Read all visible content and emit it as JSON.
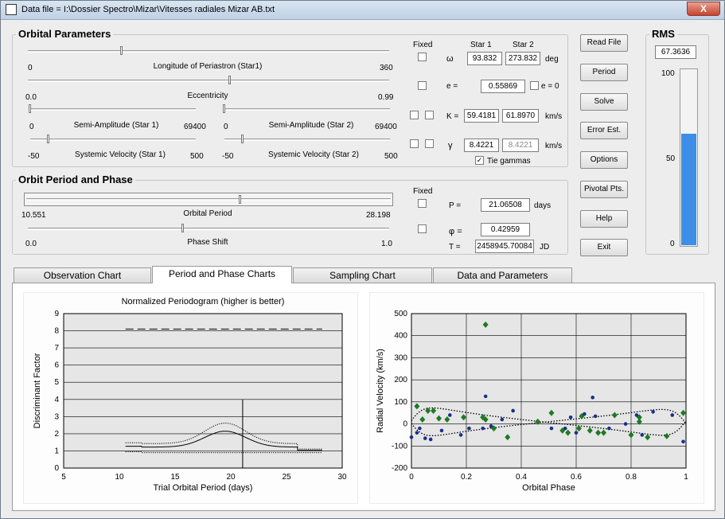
{
  "window": {
    "title": "Data file = I:\\Dossier Spectro\\Mizar\\Vitesses radiales Mizar AB.txt",
    "close_glyph": "X"
  },
  "orbital": {
    "title": "Orbital Parameters",
    "fixed_label": "Fixed",
    "star1_header": "Star 1",
    "star2_header": "Star 2",
    "sliders": {
      "periastron": {
        "label": "Longitude of Periastron (Star1)",
        "min": "0",
        "max": "360",
        "pos": 0.26
      },
      "eccentricity": {
        "label": "Eccentricity",
        "min": "0.0",
        "max": "0.99",
        "pos": 0.56
      },
      "semi1": {
        "label": "Semi-Amplitude (Star 1)",
        "min": "0",
        "max": "69400",
        "pos": 0.0
      },
      "semi2": {
        "label": "Semi-Amplitude (Star 2)",
        "min": "0",
        "max": "69400",
        "pos": 0.0
      },
      "sysvel1": {
        "label": "Systemic Velocity (Star 1)",
        "min": "-50",
        "max": "500",
        "pos": 0.11
      },
      "sysvel2": {
        "label": "Systemic Velocity (Star 2)",
        "min": "-50",
        "max": "500",
        "pos": 0.11
      }
    },
    "omega": {
      "symbol": "ω",
      "star1": "93.832",
      "star2": "273.832",
      "unit": "deg"
    },
    "e": {
      "symbol": "e =",
      "value": "0.55869",
      "zero_label": "e = 0"
    },
    "K": {
      "symbol": "K =",
      "star1": "59.4181",
      "star2": "61.8970",
      "unit": "km/s"
    },
    "gamma": {
      "symbol": "γ",
      "star1": "8.4221",
      "star2": "8.4221",
      "unit": "km/s"
    },
    "tie_gammas": {
      "label": "Tie gammas",
      "checked": true
    }
  },
  "period": {
    "title": "Orbit Period and Phase",
    "fixed_label": "Fixed",
    "orbital_period": {
      "label": "Orbital Period",
      "min": "10.551",
      "max": "28.198",
      "pos": 0.59
    },
    "phase_shift": {
      "label": "Phase Shift",
      "min": "0.0",
      "max": "1.0",
      "pos": 0.43
    },
    "P": {
      "symbol": "P =",
      "value": "21.06508",
      "unit": "days"
    },
    "phi": {
      "symbol": "φ =",
      "value": "0.42959"
    },
    "T": {
      "symbol": "T =",
      "value": "2458945.70084",
      "unit": "JD"
    }
  },
  "buttons": {
    "read_file": "Read File",
    "period": "Period",
    "solve": "Solve",
    "error": "Error Est.",
    "options": "Options",
    "pivotal": "Pivotal Pts.",
    "help": "Help",
    "exit": "Exit"
  },
  "rms": {
    "title": "RMS",
    "value": "67.3636",
    "ticks": [
      "100",
      "50",
      "0"
    ],
    "level": 0.63,
    "color": "#3d8ee6"
  },
  "tabs": [
    {
      "label": "Observation Chart",
      "active": false
    },
    {
      "label": "Period and Phase Charts",
      "active": true
    },
    {
      "label": "Sampling Chart",
      "active": false
    },
    {
      "label": "Data and Parameters",
      "active": false
    }
  ],
  "chart_data": [
    {
      "type": "scatter",
      "title": "Normalized Periodogram  (higher is better)",
      "xlabel": "Trial Orbital Period (days)",
      "ylabel": "Discriminant Factor",
      "xlim": [
        5,
        30
      ],
      "ylim": [
        0,
        9
      ],
      "xticks": [
        "5",
        "10",
        "15",
        "20",
        "25",
        "30"
      ],
      "yticks": [
        "0",
        "1",
        "2",
        "3",
        "4",
        "5",
        "6",
        "7",
        "8",
        "9"
      ],
      "grid": "horizontal",
      "marker_line": {
        "x": 21.065
      },
      "dash_level": {
        "y": 8.1,
        "x_range": [
          10.55,
          28.2
        ]
      },
      "curve": {
        "x_range": [
          10.55,
          28.2
        ],
        "envelope_peak": 4.0,
        "peak_at": 19.5
      }
    },
    {
      "type": "scatter",
      "xlabel": "Orbital Phase",
      "ylabel": "Radial Velocity (km/s)",
      "xlim": [
        0,
        1
      ],
      "ylim": [
        -200,
        500
      ],
      "xticks": [
        "0",
        "0.2",
        "0.4",
        "0.6",
        "0.8",
        "1"
      ],
      "yticks": [
        "500",
        "400",
        "300",
        "200",
        "100",
        "0",
        "-100",
        "-200"
      ],
      "grid": true,
      "series": [
        {
          "color": "#1e7a23",
          "marker": "diamond",
          "points": [
            [
              0.02,
              80
            ],
            [
              0.04,
              20
            ],
            [
              0.06,
              60
            ],
            [
              0.08,
              60
            ],
            [
              0.1,
              25
            ],
            [
              0.13,
              20
            ],
            [
              0.19,
              30
            ],
            [
              0.26,
              30
            ],
            [
              0.27,
              450
            ],
            [
              0.27,
              20
            ],
            [
              0.3,
              -20
            ],
            [
              0.35,
              -60
            ],
            [
              0.46,
              10
            ],
            [
              0.51,
              50
            ],
            [
              0.55,
              -30
            ],
            [
              0.57,
              -40
            ],
            [
              0.61,
              -20
            ],
            [
              0.62,
              35
            ],
            [
              0.65,
              -30
            ],
            [
              0.68,
              -40
            ],
            [
              0.7,
              -40
            ],
            [
              0.74,
              40
            ],
            [
              0.8,
              -50
            ],
            [
              0.83,
              10
            ],
            [
              0.83,
              30
            ],
            [
              0.86,
              -60
            ],
            [
              0.93,
              -55
            ],
            [
              0.99,
              50
            ]
          ]
        },
        {
          "color": "#1a2f8c",
          "marker": "dot",
          "points": [
            [
              0.0,
              -60
            ],
            [
              0.02,
              -40
            ],
            [
              0.03,
              -20
            ],
            [
              0.05,
              -65
            ],
            [
              0.07,
              -70
            ],
            [
              0.11,
              -30
            ],
            [
              0.14,
              40
            ],
            [
              0.18,
              -50
            ],
            [
              0.21,
              -20
            ],
            [
              0.26,
              -20
            ],
            [
              0.27,
              125
            ],
            [
              0.29,
              -10
            ],
            [
              0.33,
              20
            ],
            [
              0.37,
              60
            ],
            [
              0.51,
              -20
            ],
            [
              0.56,
              -20
            ],
            [
              0.58,
              30
            ],
            [
              0.6,
              -40
            ],
            [
              0.63,
              45
            ],
            [
              0.66,
              120
            ],
            [
              0.67,
              35
            ],
            [
              0.72,
              -20
            ],
            [
              0.78,
              0
            ],
            [
              0.82,
              40
            ],
            [
              0.84,
              -50
            ],
            [
              0.88,
              55
            ],
            [
              0.95,
              40
            ],
            [
              0.99,
              -80
            ]
          ]
        }
      ],
      "model_curves": true
    }
  ]
}
